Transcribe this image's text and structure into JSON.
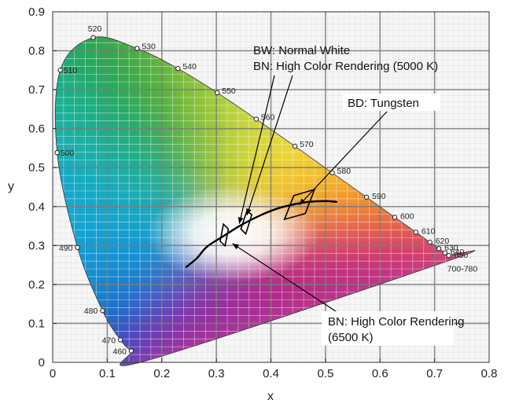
{
  "chart_data": {
    "type": "scatter",
    "title": "",
    "xlabel": "x",
    "ylabel": "y",
    "xlim": [
      0,
      0.8
    ],
    "ylim": [
      0,
      0.9
    ],
    "x_ticks": [
      "0",
      "0.1",
      "0.2",
      "0.3",
      "0.4",
      "0.5",
      "0.6",
      "0.7",
      "0.8"
    ],
    "y_ticks": [
      "0",
      "0.1",
      "0.2",
      "0.3",
      "0.4",
      "0.5",
      "0.6",
      "0.7",
      "0.8",
      "0.9"
    ],
    "grid": true,
    "spectral_locus": [
      {
        "x": 0.1741,
        "y": 0.005
      },
      {
        "x": 0.144,
        "y": 0.0297,
        "label": "460"
      },
      {
        "x": 0.1241,
        "y": 0.0578,
        "label": "470"
      },
      {
        "x": 0.0913,
        "y": 0.1327,
        "label": "480"
      },
      {
        "x": 0.0454,
        "y": 0.295,
        "label": "490"
      },
      {
        "x": 0.0082,
        "y": 0.5384,
        "label": "500"
      },
      {
        "x": 0.0139,
        "y": 0.7502,
        "label": "510"
      },
      {
        "x": 0.0743,
        "y": 0.8338,
        "label": "520"
      },
      {
        "x": 0.1547,
        "y": 0.8059,
        "label": "530"
      },
      {
        "x": 0.2296,
        "y": 0.7543,
        "label": "540"
      },
      {
        "x": 0.3016,
        "y": 0.6923,
        "label": "550"
      },
      {
        "x": 0.3731,
        "y": 0.6245,
        "label": "560"
      },
      {
        "x": 0.4441,
        "y": 0.5547,
        "label": "570"
      },
      {
        "x": 0.5125,
        "y": 0.4866,
        "label": "580"
      },
      {
        "x": 0.5752,
        "y": 0.4242,
        "label": "590"
      },
      {
        "x": 0.627,
        "y": 0.3725,
        "label": "600"
      },
      {
        "x": 0.6658,
        "y": 0.334,
        "label": "610"
      },
      {
        "x": 0.6915,
        "y": 0.3083,
        "label": "620"
      },
      {
        "x": 0.7079,
        "y": 0.292,
        "label": "630"
      },
      {
        "x": 0.719,
        "y": 0.2809,
        "label": "640"
      },
      {
        "x": 0.726,
        "y": 0.274,
        "label": "650"
      },
      {
        "x": 0.7347,
        "y": 0.2653,
        "label": "700-780"
      }
    ],
    "planckian_locus": [
      {
        "x": 0.245,
        "y": 0.245
      },
      {
        "x": 0.264,
        "y": 0.267
      },
      {
        "x": 0.283,
        "y": 0.297
      },
      {
        "x": 0.313,
        "y": 0.324
      },
      {
        "x": 0.345,
        "y": 0.352
      },
      {
        "x": 0.38,
        "y": 0.377
      },
      {
        "x": 0.41,
        "y": 0.394
      },
      {
        "x": 0.44,
        "y": 0.405
      },
      {
        "x": 0.47,
        "y": 0.412
      },
      {
        "x": 0.5,
        "y": 0.414
      },
      {
        "x": 0.52,
        "y": 0.412
      }
    ],
    "regions": [
      {
        "label": "BN: High Color Rendering (6500 K)",
        "points": [
          [
            0.313,
            0.355
          ],
          [
            0.322,
            0.342
          ],
          [
            0.316,
            0.299
          ],
          [
            0.307,
            0.311
          ]
        ]
      },
      {
        "label": "BN: High Color Rendering (5000 K)",
        "points": [
          [
            0.356,
            0.389
          ],
          [
            0.365,
            0.379
          ],
          [
            0.354,
            0.33
          ],
          [
            0.345,
            0.342
          ]
        ]
      },
      {
        "label": "BW: Normal White",
        "points": [
          [
            0.356,
            0.389
          ],
          [
            0.365,
            0.379
          ],
          [
            0.354,
            0.33
          ],
          [
            0.345,
            0.342
          ]
        ]
      },
      {
        "label": "BD: Tungsten",
        "points": [
          [
            0.48,
            0.444
          ],
          [
            0.463,
            0.382
          ],
          [
            0.425,
            0.367
          ],
          [
            0.442,
            0.428
          ]
        ]
      }
    ],
    "annotations": [
      {
        "text": "BW: Normal White",
        "target": [
          0.356,
          0.378
        ]
      },
      {
        "text": "BN: High Color Rendering (5000 K)",
        "target": [
          0.342,
          0.356
        ]
      },
      {
        "text": "BD: Tungsten",
        "target": [
          0.452,
          0.404
        ]
      },
      {
        "text": "BN: High Color Rendering",
        "text2": "(6500 K)",
        "target": [
          0.318,
          0.315
        ]
      }
    ]
  }
}
